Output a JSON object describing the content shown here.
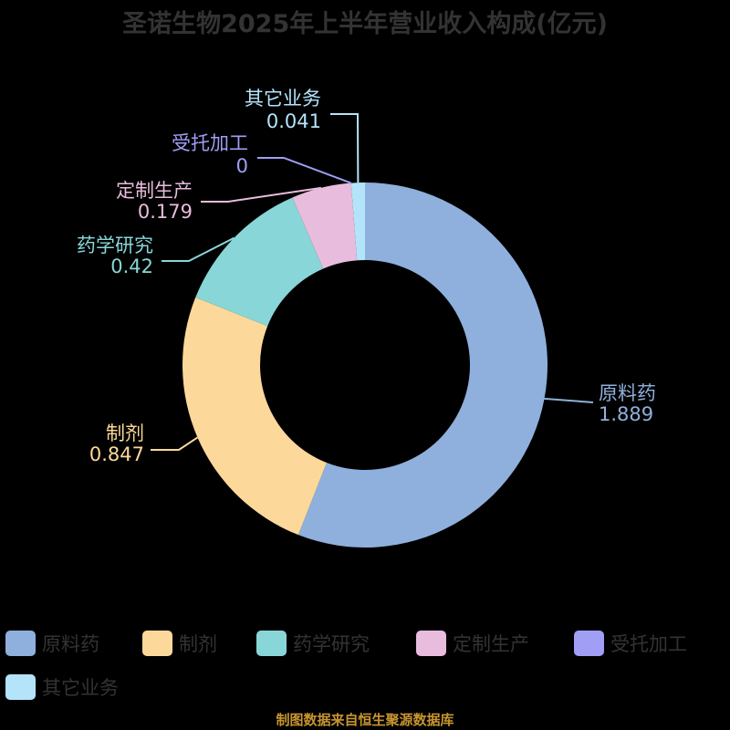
{
  "chart_data": {
    "type": "pie",
    "variant": "donut",
    "title": "圣诺生物2025年上半年营业收入构成(亿元)",
    "unit": "亿元",
    "categories": [
      "原料药",
      "制剂",
      "药学研究",
      "定制生产",
      "受托加工",
      "其它业务"
    ],
    "values": [
      1.889,
      0.847,
      0.42,
      0.179,
      0,
      0.041
    ],
    "colors": [
      "#8fb0dc",
      "#fcd99a",
      "#88d6d8",
      "#e8bcdc",
      "#a09ef5",
      "#b3e4fa"
    ],
    "legend_position": "bottom",
    "start_angle": "12 o'clock, clockwise"
  },
  "title": "圣诺生物2025年上半年营业收入构成(亿元)",
  "labels": [
    {
      "name": "原料药",
      "value": "1.889"
    },
    {
      "name": "制剂",
      "value": "0.847"
    },
    {
      "name": "药学研究",
      "value": "0.42"
    },
    {
      "name": "定制生产",
      "value": "0.179"
    },
    {
      "name": "受托加工",
      "value": "0"
    },
    {
      "name": "其它业务",
      "value": "0.041"
    }
  ],
  "legend": [
    {
      "label": "原料药",
      "color": "#8fb0dc"
    },
    {
      "label": "制剂",
      "color": "#fcd99a"
    },
    {
      "label": "药学研究",
      "color": "#88d6d8"
    },
    {
      "label": "定制生产",
      "color": "#e8bcdc"
    },
    {
      "label": "受托加工",
      "color": "#a09ef5"
    },
    {
      "label": "其它业务",
      "color": "#b3e4fa"
    }
  ],
  "source": "制图数据来自恒生聚源数据库"
}
